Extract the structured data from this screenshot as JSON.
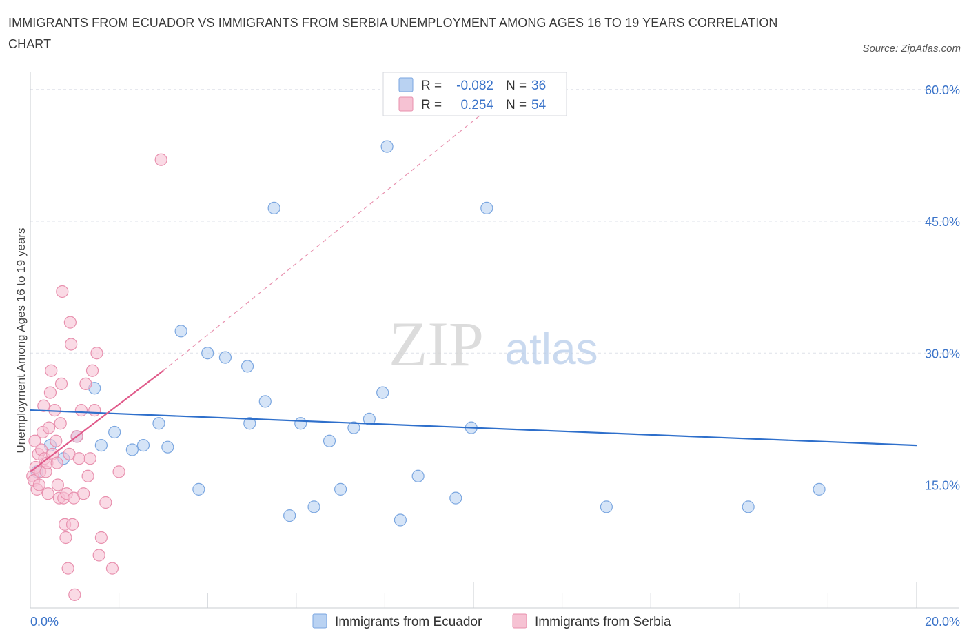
{
  "title": "IMMIGRANTS FROM ECUADOR VS IMMIGRANTS FROM SERBIA UNEMPLOYMENT AMONG AGES 16 TO 19 YEARS CORRELATION CHART",
  "source": "Source: ZipAtlas.com",
  "watermark": {
    "zip": "ZIP",
    "atlas": "atlas"
  },
  "legend_box": {
    "rows": [
      {
        "r_label": "R =",
        "r_value": "-0.082",
        "n_label": "N =",
        "n_value": "36"
      },
      {
        "r_label": "R =",
        "r_value": "0.254",
        "n_label": "N =",
        "n_value": "54"
      }
    ]
  },
  "colors": {
    "ecuador_fill": "#b9d2f2",
    "ecuador_stroke": "#7aa6e0",
    "ecuador_line": "#2e6fcb",
    "serbia_fill": "#f6c2d3",
    "serbia_stroke": "#e890ae",
    "serbia_line": "#e05a8a",
    "accent_text": "#3a73c9",
    "grid": "#dde1e8"
  },
  "chart_data": {
    "type": "scatter",
    "title": "IMMIGRANTS FROM ECUADOR VS IMMIGRANTS FROM SERBIA UNEMPLOYMENT AMONG AGES 16 TO 19 YEARS CORRELATION CHART",
    "xlabel": "",
    "ylabel": "Unemployment Among Ages 16 to 19 years",
    "xlim": [
      0,
      20
    ],
    "ylim": [
      1,
      61
    ],
    "x_tick_labels": [
      {
        "value": 0,
        "label": "0.0%"
      },
      {
        "value": 20,
        "label": "20.0%"
      }
    ],
    "y_tick_labels": [
      {
        "value": 15,
        "label": "15.0%"
      },
      {
        "value": 30,
        "label": "30.0%"
      },
      {
        "value": 45,
        "label": "45.0%"
      },
      {
        "value": 60,
        "label": "60.0%"
      }
    ],
    "legend": [
      "Immigrants from Ecuador",
      "Immigrants from Serbia"
    ],
    "series": [
      {
        "name": "Immigrants from Ecuador",
        "r": -0.082,
        "n": 36,
        "points": [
          [
            0.15,
            16.5
          ],
          [
            0.45,
            19.5
          ],
          [
            0.75,
            18.0
          ],
          [
            1.05,
            20.5
          ],
          [
            1.45,
            26.0
          ],
          [
            1.6,
            19.5
          ],
          [
            1.9,
            21.0
          ],
          [
            2.3,
            19.0
          ],
          [
            2.55,
            19.5
          ],
          [
            2.9,
            22.0
          ],
          [
            3.1,
            19.3
          ],
          [
            3.4,
            32.5
          ],
          [
            3.8,
            14.5
          ],
          [
            4.0,
            30.0
          ],
          [
            4.4,
            29.5
          ],
          [
            4.9,
            28.5
          ],
          [
            4.95,
            22.0
          ],
          [
            5.3,
            24.5
          ],
          [
            5.5,
            46.5
          ],
          [
            5.85,
            11.5
          ],
          [
            6.1,
            22.0
          ],
          [
            6.4,
            12.5
          ],
          [
            6.75,
            20.0
          ],
          [
            7.0,
            14.5
          ],
          [
            7.3,
            21.5
          ],
          [
            7.65,
            22.5
          ],
          [
            7.95,
            25.5
          ],
          [
            8.05,
            53.5
          ],
          [
            8.35,
            11.0
          ],
          [
            8.75,
            16.0
          ],
          [
            9.6,
            13.5
          ],
          [
            9.95,
            21.5
          ],
          [
            10.3,
            46.5
          ],
          [
            13.0,
            12.5
          ],
          [
            16.2,
            12.5
          ],
          [
            17.8,
            14.5
          ]
        ],
        "trend": {
          "x": [
            0,
            20
          ],
          "y": [
            23.5,
            19.5
          ]
        }
      },
      {
        "name": "Immigrants from Serbia",
        "r": 0.254,
        "n": 54,
        "points": [
          [
            0.05,
            16.0
          ],
          [
            0.08,
            15.5
          ],
          [
            0.1,
            20.0
          ],
          [
            0.12,
            17.0
          ],
          [
            0.15,
            14.5
          ],
          [
            0.18,
            18.5
          ],
          [
            0.2,
            15.0
          ],
          [
            0.22,
            16.5
          ],
          [
            0.25,
            19.0
          ],
          [
            0.28,
            21.0
          ],
          [
            0.3,
            24.0
          ],
          [
            0.32,
            18.0
          ],
          [
            0.35,
            16.5
          ],
          [
            0.38,
            17.5
          ],
          [
            0.4,
            14.0
          ],
          [
            0.42,
            21.5
          ],
          [
            0.45,
            25.5
          ],
          [
            0.47,
            28.0
          ],
          [
            0.5,
            18.5
          ],
          [
            0.55,
            23.5
          ],
          [
            0.58,
            20.0
          ],
          [
            0.6,
            17.5
          ],
          [
            0.62,
            15.0
          ],
          [
            0.65,
            13.5
          ],
          [
            0.68,
            22.0
          ],
          [
            0.7,
            26.5
          ],
          [
            0.72,
            37.0
          ],
          [
            0.75,
            13.5
          ],
          [
            0.78,
            10.5
          ],
          [
            0.8,
            9.0
          ],
          [
            0.82,
            14.0
          ],
          [
            0.85,
            5.5
          ],
          [
            0.88,
            18.5
          ],
          [
            0.9,
            33.5
          ],
          [
            0.92,
            31.0
          ],
          [
            0.95,
            10.5
          ],
          [
            0.98,
            13.5
          ],
          [
            1.0,
            2.5
          ],
          [
            1.05,
            20.5
          ],
          [
            1.1,
            18.0
          ],
          [
            1.15,
            23.5
          ],
          [
            1.2,
            14.0
          ],
          [
            1.25,
            26.5
          ],
          [
            1.3,
            16.0
          ],
          [
            1.35,
            18.0
          ],
          [
            1.4,
            28.0
          ],
          [
            1.45,
            23.5
          ],
          [
            1.5,
            30.0
          ],
          [
            1.55,
            7.0
          ],
          [
            1.6,
            9.0
          ],
          [
            1.7,
            13.0
          ],
          [
            1.85,
            5.5
          ],
          [
            2.0,
            16.5
          ],
          [
            2.95,
            52.0
          ]
        ],
        "trend": {
          "x": [
            0,
            3.0
          ],
          "y": [
            16.5,
            28.0
          ]
        },
        "trend_extended": {
          "x": [
            3.0,
            11.0
          ],
          "y": [
            28.0,
            60.5
          ]
        }
      }
    ]
  }
}
